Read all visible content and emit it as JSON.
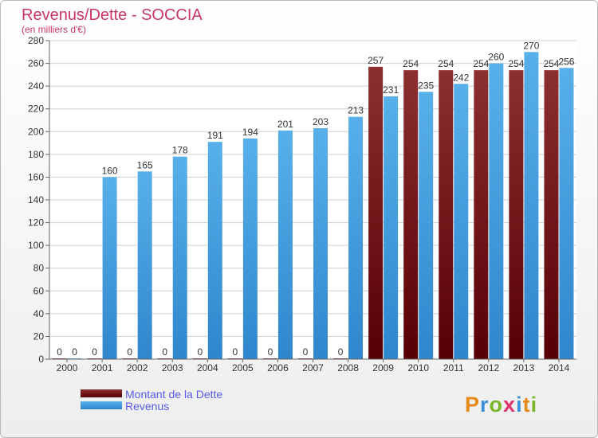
{
  "chart_data": {
    "type": "bar",
    "title": "Revenus/Dette - SOCCIA",
    "subtitle": "(en milliers d'€)",
    "categories": [
      "2000",
      "2001",
      "2002",
      "2003",
      "2004",
      "2005",
      "2006",
      "2007",
      "2008",
      "2009",
      "2010",
      "2011",
      "2012",
      "2013",
      "2014"
    ],
    "series": [
      {
        "name": "Montant de la Dette",
        "values": [
          0,
          0,
          0,
          0,
          0,
          0,
          0,
          0,
          0,
          257,
          254,
          254,
          254,
          254,
          254
        ],
        "color": "#6b0f14"
      },
      {
        "name": "Revenus",
        "values": [
          0,
          160,
          165,
          178,
          191,
          194,
          201,
          203,
          213,
          231,
          235,
          242,
          260,
          270,
          256
        ],
        "color": "#3f9fe0"
      }
    ],
    "ylim": [
      0,
      280
    ],
    "yticks": [
      0,
      20,
      40,
      60,
      80,
      100,
      120,
      140,
      160,
      180,
      200,
      220,
      240,
      260,
      280
    ],
    "grid": true,
    "legend_position": "bottom-left",
    "title_color": "#c8356a"
  },
  "logo": {
    "text": "Proxiti"
  }
}
